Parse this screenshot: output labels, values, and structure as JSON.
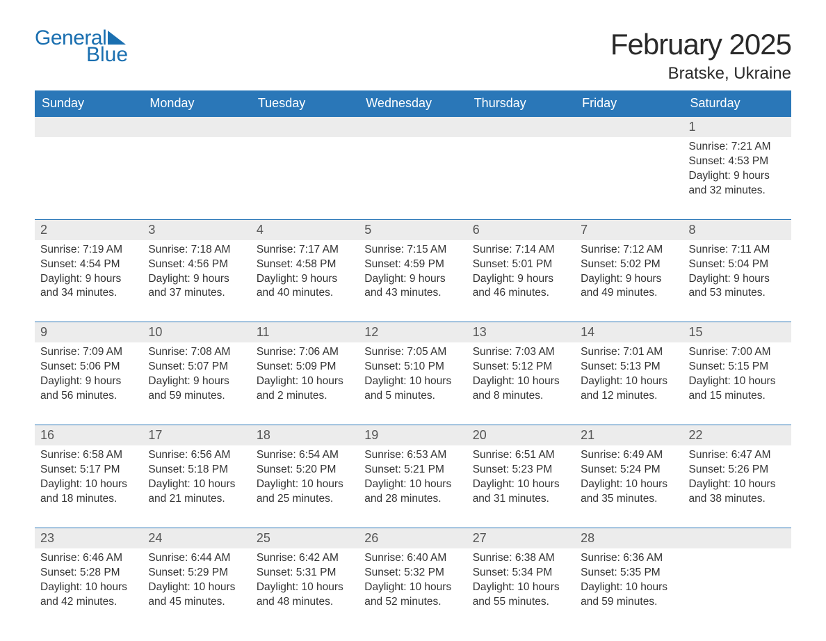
{
  "brand": {
    "line1": "General",
    "line2": "Blue",
    "color": "#1a6fb0"
  },
  "header": {
    "month_title": "February 2025",
    "location": "Bratske, Ukraine"
  },
  "style": {
    "header_bg": "#2a77b8",
    "header_fg": "#ffffff",
    "daynum_bg": "#ececec",
    "border_color": "#2a77b8",
    "text_color": "#333333",
    "background": "#ffffff",
    "font_family": "Arial, Helvetica, sans-serif",
    "title_fontsize": 42,
    "location_fontsize": 24,
    "header_fontsize": 18,
    "daynum_fontsize": 18,
    "body_fontsize": 15.5,
    "columns": 7
  },
  "day_headers": [
    "Sunday",
    "Monday",
    "Tuesday",
    "Wednesday",
    "Thursday",
    "Friday",
    "Saturday"
  ],
  "weeks": [
    [
      {
        "blank": true
      },
      {
        "blank": true
      },
      {
        "blank": true
      },
      {
        "blank": true
      },
      {
        "blank": true
      },
      {
        "blank": true
      },
      {
        "day": 1,
        "sunrise": "7:21 AM",
        "sunset": "4:53 PM",
        "daylight": "9 hours and 32 minutes."
      }
    ],
    [
      {
        "day": 2,
        "sunrise": "7:19 AM",
        "sunset": "4:54 PM",
        "daylight": "9 hours and 34 minutes."
      },
      {
        "day": 3,
        "sunrise": "7:18 AM",
        "sunset": "4:56 PM",
        "daylight": "9 hours and 37 minutes."
      },
      {
        "day": 4,
        "sunrise": "7:17 AM",
        "sunset": "4:58 PM",
        "daylight": "9 hours and 40 minutes."
      },
      {
        "day": 5,
        "sunrise": "7:15 AM",
        "sunset": "4:59 PM",
        "daylight": "9 hours and 43 minutes."
      },
      {
        "day": 6,
        "sunrise": "7:14 AM",
        "sunset": "5:01 PM",
        "daylight": "9 hours and 46 minutes."
      },
      {
        "day": 7,
        "sunrise": "7:12 AM",
        "sunset": "5:02 PM",
        "daylight": "9 hours and 49 minutes."
      },
      {
        "day": 8,
        "sunrise": "7:11 AM",
        "sunset": "5:04 PM",
        "daylight": "9 hours and 53 minutes."
      }
    ],
    [
      {
        "day": 9,
        "sunrise": "7:09 AM",
        "sunset": "5:06 PM",
        "daylight": "9 hours and 56 minutes."
      },
      {
        "day": 10,
        "sunrise": "7:08 AM",
        "sunset": "5:07 PM",
        "daylight": "9 hours and 59 minutes."
      },
      {
        "day": 11,
        "sunrise": "7:06 AM",
        "sunset": "5:09 PM",
        "daylight": "10 hours and 2 minutes."
      },
      {
        "day": 12,
        "sunrise": "7:05 AM",
        "sunset": "5:10 PM",
        "daylight": "10 hours and 5 minutes."
      },
      {
        "day": 13,
        "sunrise": "7:03 AM",
        "sunset": "5:12 PM",
        "daylight": "10 hours and 8 minutes."
      },
      {
        "day": 14,
        "sunrise": "7:01 AM",
        "sunset": "5:13 PM",
        "daylight": "10 hours and 12 minutes."
      },
      {
        "day": 15,
        "sunrise": "7:00 AM",
        "sunset": "5:15 PM",
        "daylight": "10 hours and 15 minutes."
      }
    ],
    [
      {
        "day": 16,
        "sunrise": "6:58 AM",
        "sunset": "5:17 PM",
        "daylight": "10 hours and 18 minutes."
      },
      {
        "day": 17,
        "sunrise": "6:56 AM",
        "sunset": "5:18 PM",
        "daylight": "10 hours and 21 minutes."
      },
      {
        "day": 18,
        "sunrise": "6:54 AM",
        "sunset": "5:20 PM",
        "daylight": "10 hours and 25 minutes."
      },
      {
        "day": 19,
        "sunrise": "6:53 AM",
        "sunset": "5:21 PM",
        "daylight": "10 hours and 28 minutes."
      },
      {
        "day": 20,
        "sunrise": "6:51 AM",
        "sunset": "5:23 PM",
        "daylight": "10 hours and 31 minutes."
      },
      {
        "day": 21,
        "sunrise": "6:49 AM",
        "sunset": "5:24 PM",
        "daylight": "10 hours and 35 minutes."
      },
      {
        "day": 22,
        "sunrise": "6:47 AM",
        "sunset": "5:26 PM",
        "daylight": "10 hours and 38 minutes."
      }
    ],
    [
      {
        "day": 23,
        "sunrise": "6:46 AM",
        "sunset": "5:28 PM",
        "daylight": "10 hours and 42 minutes."
      },
      {
        "day": 24,
        "sunrise": "6:44 AM",
        "sunset": "5:29 PM",
        "daylight": "10 hours and 45 minutes."
      },
      {
        "day": 25,
        "sunrise": "6:42 AM",
        "sunset": "5:31 PM",
        "daylight": "10 hours and 48 minutes."
      },
      {
        "day": 26,
        "sunrise": "6:40 AM",
        "sunset": "5:32 PM",
        "daylight": "10 hours and 52 minutes."
      },
      {
        "day": 27,
        "sunrise": "6:38 AM",
        "sunset": "5:34 PM",
        "daylight": "10 hours and 55 minutes."
      },
      {
        "day": 28,
        "sunrise": "6:36 AM",
        "sunset": "5:35 PM",
        "daylight": "10 hours and 59 minutes."
      },
      {
        "blank": true
      }
    ]
  ],
  "labels": {
    "sunrise_prefix": "Sunrise: ",
    "sunset_prefix": "Sunset: ",
    "daylight_prefix": "Daylight: "
  }
}
